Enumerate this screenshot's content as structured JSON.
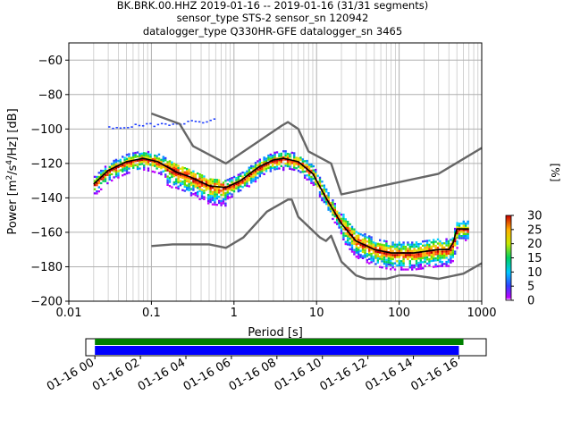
{
  "header": {
    "line1": "BK.BRK.00.HHZ   2019-01-16 -- 2019-01-16  (31/31 segments)",
    "line2": "sensor_type STS-2 sensor_sn 120942",
    "line3": "datalogger_type Q330HR-GFE datalogger_sn 3465"
  },
  "chart_data": [
    {
      "type": "heatmap",
      "title": "BK.BRK.00.HHZ   2019-01-16 -- 2019-01-16  (31/31 segments)",
      "xlabel": "Period [s]",
      "ylabel": "Power [m^2/s^4/Hz] [dB]",
      "x_scale": "log",
      "xlim": [
        0.01,
        1000
      ],
      "ylim": [
        -200,
        -50
      ],
      "grid": true,
      "x_ticks": [
        "0.01",
        "0.1",
        "1",
        "10",
        "100",
        "1000"
      ],
      "y_ticks": [
        "−60",
        "−80",
        "−100",
        "−120",
        "−140",
        "−160",
        "−180",
        "−200"
      ],
      "colorbar": {
        "label": "[%]",
        "range": [
          0,
          30
        ],
        "ticks": [
          "0",
          "5",
          "10",
          "15",
          "20",
          "25",
          "30"
        ]
      },
      "series": [
        {
          "name": "",
          "role": "mode",
          "color": "#000000",
          "points": [
            [
              0.02,
              -132
            ],
            [
              0.03,
              -124
            ],
            [
              0.05,
              -119
            ],
            [
              0.08,
              -117
            ],
            [
              0.12,
              -119
            ],
            [
              0.2,
              -125
            ],
            [
              0.3,
              -128
            ],
            [
              0.5,
              -133
            ],
            [
              0.8,
              -134
            ],
            [
              1.2,
              -130
            ],
            [
              2,
              -122
            ],
            [
              3,
              -118
            ],
            [
              4,
              -117
            ],
            [
              6,
              -119
            ],
            [
              9,
              -126
            ],
            [
              13,
              -140
            ],
            [
              20,
              -155
            ],
            [
              30,
              -165
            ],
            [
              50,
              -170
            ],
            [
              80,
              -172
            ],
            [
              150,
              -172
            ],
            [
              300,
              -170
            ],
            [
              400,
              -170
            ],
            [
              450,
              -166
            ],
            [
              500,
              -158
            ],
            [
              700,
              -158
            ]
          ]
        },
        {
          "name": "",
          "role": "high noise model",
          "color": "#666666",
          "points": [
            [
              0.1,
              -91
            ],
            [
              0.22,
              -97
            ],
            [
              0.32,
              -110
            ],
            [
              0.8,
              -120
            ],
            [
              3.8,
              -98
            ],
            [
              4.5,
              -96
            ],
            [
              6,
              -100
            ],
            [
              8,
              -113
            ],
            [
              15,
              -120
            ],
            [
              20,
              -138
            ],
            [
              300,
              -126
            ],
            [
              1000,
              -111
            ]
          ]
        },
        {
          "name": "",
          "role": "low noise model",
          "color": "#666666",
          "points": [
            [
              0.1,
              -168
            ],
            [
              0.18,
              -167
            ],
            [
              0.5,
              -167
            ],
            [
              0.8,
              -169
            ],
            [
              1.3,
              -163
            ],
            [
              2.5,
              -148
            ],
            [
              4.5,
              -141
            ],
            [
              5,
              -141
            ],
            [
              6,
              -151
            ],
            [
              11,
              -163
            ],
            [
              13,
              -165
            ],
            [
              15,
              -162
            ],
            [
              20,
              -177
            ],
            [
              30,
              -185
            ],
            [
              40,
              -187
            ],
            [
              70,
              -187
            ],
            [
              100,
              -185
            ],
            [
              150,
              -185
            ],
            [
              300,
              -187
            ],
            [
              600,
              -184
            ],
            [
              1000,
              -178
            ]
          ]
        }
      ]
    },
    {
      "type": "timeline",
      "x_ticks": [
        "01-16 00",
        "01-16 02",
        "01-16 04",
        "01-16 06",
        "01-16 08",
        "01-16 10",
        "01-16 12",
        "01-16 14",
        "01-16 16"
      ],
      "xlim_hours": [
        -0.4,
        17.2
      ],
      "bars": [
        {
          "role": "data available",
          "color": "#008000",
          "start_hour": 0,
          "end_hour": 16.2
        },
        {
          "role": "psd segments",
          "color": "#0000ff",
          "start_hour": 0,
          "end_hour": 16.0
        }
      ]
    }
  ],
  "colors": {
    "nlnm_nhnm": "#666666",
    "mode": "#000000",
    "grid": "#b0b0b0",
    "avail": "#008000",
    "segments": "#0000ff"
  }
}
